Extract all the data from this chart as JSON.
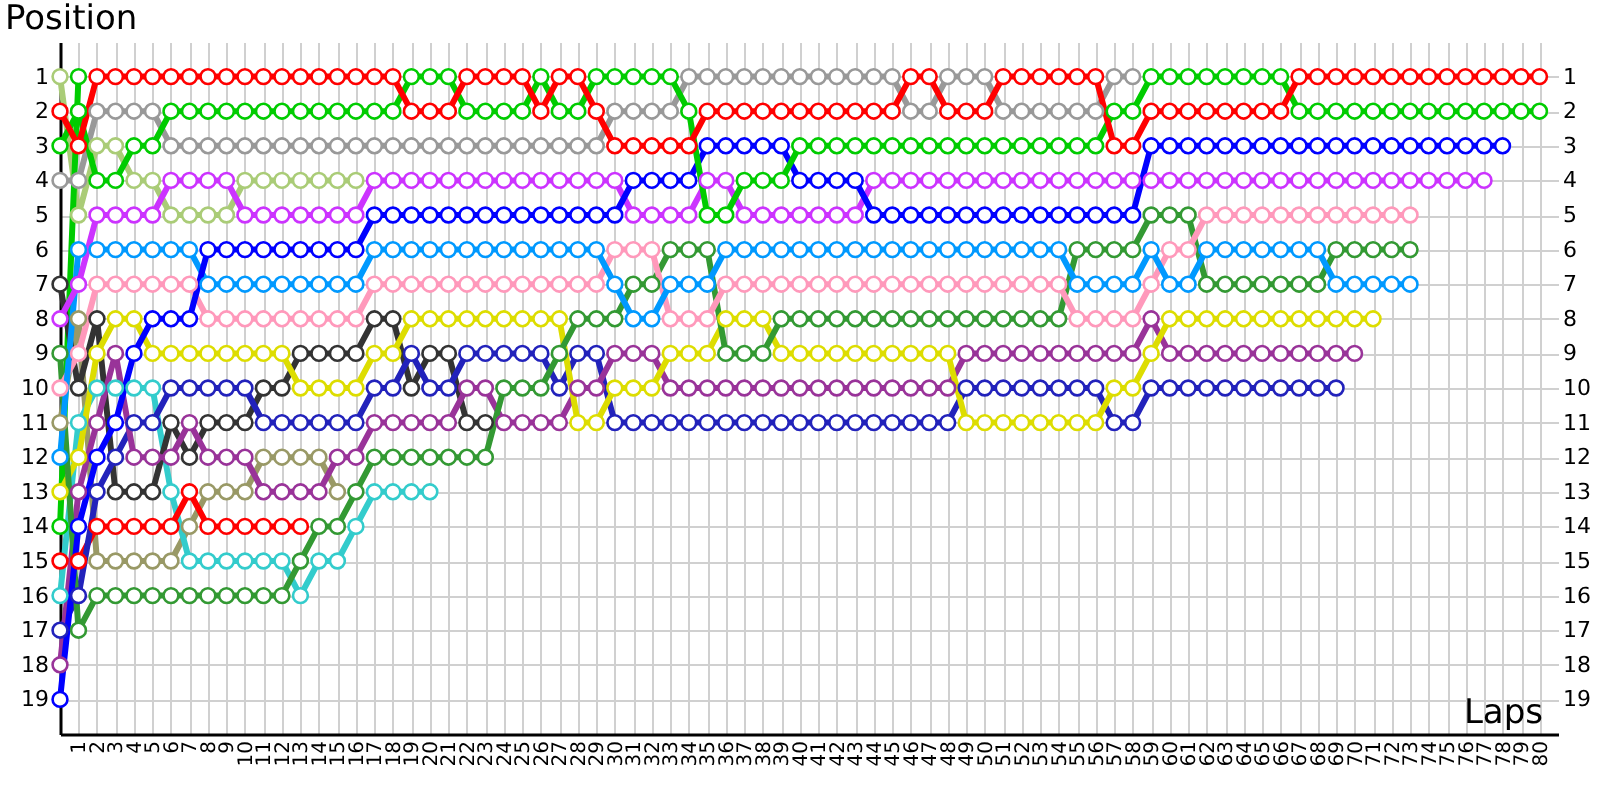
{
  "chart_data": {
    "type": "line",
    "xlabel": "Laps",
    "ylabel": "Position",
    "marker": "circle",
    "line_style": "solid",
    "grid": true,
    "xlim": [
      0,
      81
    ],
    "ylim": [
      20,
      0
    ],
    "y2lim": [
      20,
      0
    ],
    "xticks": [
      1,
      2,
      3,
      4,
      5,
      6,
      7,
      8,
      9,
      10,
      11,
      12,
      13,
      14,
      15,
      16,
      17,
      18,
      19,
      20,
      21,
      22,
      23,
      24,
      25,
      26,
      27,
      28,
      29,
      30,
      31,
      32,
      33,
      34,
      35,
      36,
      37,
      38,
      39,
      40,
      41,
      42,
      43,
      44,
      45,
      46,
      47,
      48,
      49,
      50,
      51,
      52,
      53,
      54,
      55,
      56,
      57,
      58,
      59,
      60,
      61,
      62,
      63,
      64,
      65,
      66,
      67,
      68,
      69,
      70,
      71,
      72,
      73,
      74,
      75,
      76,
      77,
      78,
      79,
      80
    ],
    "yticks": [
      1,
      2,
      3,
      4,
      5,
      6,
      7,
      8,
      9,
      10,
      11,
      12,
      13,
      14,
      15,
      16,
      17,
      18,
      19
    ],
    "y2ticks": [
      1,
      2,
      3,
      4,
      5,
      6,
      7,
      8,
      9,
      10,
      11,
      12,
      13,
      14,
      15,
      16,
      17,
      18,
      19
    ],
    "x": [
      0,
      1,
      2,
      3,
      4,
      5,
      6,
      7,
      8,
      9,
      10,
      11,
      12,
      13,
      14,
      15,
      16,
      17,
      18,
      19,
      20,
      21,
      22,
      23,
      24,
      25,
      26,
      27,
      28,
      29,
      30,
      31,
      32,
      33,
      34,
      35,
      36,
      37,
      38,
      39,
      40,
      41,
      42,
      43,
      44,
      45,
      46,
      47,
      48,
      49,
      50,
      51,
      52,
      53,
      54,
      55,
      56,
      57,
      58,
      59,
      60,
      61,
      62,
      63,
      64,
      65,
      66,
      67,
      68,
      69,
      70,
      71,
      72,
      73,
      74,
      75,
      76,
      77,
      78,
      79,
      80
    ],
    "series": [
      {
        "color": "#aacc77",
        "values": [
          1,
          5,
          3,
          3,
          4,
          4,
          5,
          5,
          5,
          5,
          4,
          4,
          4,
          4,
          4,
          4,
          4,
          null,
          null,
          null,
          null,
          null,
          null,
          null,
          null,
          null,
          null,
          null,
          null,
          null,
          null,
          null,
          null,
          null,
          null,
          null,
          null,
          null,
          null,
          null,
          null,
          null,
          null,
          null,
          null,
          null,
          null,
          null,
          null,
          null,
          null,
          null,
          null,
          null,
          null,
          null,
          null,
          null,
          null,
          null,
          null,
          null,
          null,
          null,
          null,
          null,
          null,
          null,
          null,
          null,
          null,
          null,
          null,
          null,
          null,
          null,
          null,
          null,
          null,
          null,
          null
        ]
      },
      {
        "color": "#999966",
        "values": [
          11,
          8,
          15,
          15,
          15,
          15,
          15,
          14,
          13,
          13,
          13,
          12,
          12,
          12,
          12,
          13,
          null,
          null,
          null,
          null,
          null,
          null,
          null,
          null,
          null,
          null,
          null,
          null,
          null,
          null,
          null,
          null,
          null,
          null,
          null,
          null,
          null,
          null,
          null,
          null,
          null,
          null,
          null,
          null,
          null,
          null,
          null,
          null,
          null,
          null,
          null,
          null,
          null,
          null,
          null,
          null,
          null,
          null,
          null,
          null,
          null,
          null,
          null,
          null,
          null,
          null,
          null,
          null,
          null,
          null,
          null,
          null,
          null,
          null,
          null,
          null,
          null,
          null,
          null,
          null,
          null
        ]
      },
      {
        "color": "#33cccc",
        "values": [
          16,
          11,
          10,
          10,
          10,
          10,
          13,
          15,
          15,
          15,
          15,
          15,
          15,
          16,
          15,
          15,
          14,
          13,
          13,
          13,
          13,
          null,
          null,
          null,
          null,
          null,
          null,
          null,
          null,
          null,
          null,
          null,
          null,
          null,
          null,
          null,
          null,
          null,
          null,
          null,
          null,
          null,
          null,
          null,
          null,
          null,
          null,
          null,
          null,
          null,
          null,
          null,
          null,
          null,
          null,
          null,
          null,
          null,
          null,
          null,
          null,
          null,
          null,
          null,
          null,
          null,
          null,
          null,
          null,
          null,
          null,
          null,
          null,
          null,
          null,
          null,
          null,
          null,
          null,
          null,
          null
        ]
      },
      {
        "color": "#ff0000",
        "values": [
          15,
          15,
          14,
          14,
          14,
          14,
          14,
          13,
          14,
          14,
          14,
          14,
          14,
          14,
          null,
          null,
          null,
          null,
          null,
          null,
          null,
          null,
          null,
          null,
          null,
          null,
          null,
          null,
          null,
          null,
          null,
          null,
          null,
          null,
          null,
          null,
          null,
          null,
          null,
          null,
          null,
          null,
          null,
          null,
          null,
          null,
          null,
          null,
          null,
          null,
          null,
          null,
          null,
          null,
          null,
          null,
          null,
          null,
          null,
          null,
          null,
          null,
          null,
          null,
          null,
          null,
          null,
          null,
          null,
          null,
          null,
          null,
          null,
          null,
          null,
          null,
          null,
          null,
          null,
          null,
          null
        ]
      },
      {
        "color": "#00cc00",
        "values": [
          14,
          1,
          null,
          null,
          null,
          null,
          null,
          null,
          null,
          null,
          null,
          null,
          null,
          null,
          null,
          null,
          null,
          null,
          null,
          null,
          null,
          null,
          null,
          null,
          null,
          null,
          null,
          null,
          null,
          null,
          null,
          null,
          null,
          null,
          null,
          null,
          null,
          null,
          null,
          null,
          null,
          null,
          null,
          null,
          null,
          null,
          null,
          null,
          null,
          null,
          null,
          null,
          null,
          null,
          null,
          null,
          null,
          null,
          null,
          null,
          null,
          null,
          null,
          null,
          null,
          null,
          null,
          null,
          null,
          null,
          null,
          null,
          null,
          null,
          null,
          null,
          null,
          null,
          null,
          null,
          null
        ]
      },
      {
        "color": "#333333",
        "values": [
          7,
          10,
          8,
          13,
          13,
          13,
          11,
          12,
          11,
          11,
          11,
          10,
          10,
          9,
          9,
          9,
          9,
          8,
          8,
          10,
          9,
          9,
          11,
          11,
          null,
          null,
          null,
          null,
          null,
          null,
          null,
          null,
          null,
          null,
          null,
          null,
          null,
          null,
          null,
          null,
          null,
          null,
          null,
          null,
          null,
          null,
          null,
          null,
          null,
          null,
          null,
          null,
          null,
          null,
          null,
          null,
          null,
          null,
          null,
          null,
          null,
          null,
          null,
          null,
          null,
          null,
          null,
          null,
          null,
          null,
          null,
          null,
          null,
          null,
          null,
          null,
          null,
          null,
          null,
          null,
          null
        ]
      },
      {
        "color": "#999999",
        "values": [
          4,
          4,
          2,
          2,
          2,
          2,
          3,
          3,
          3,
          3,
          3,
          3,
          3,
          3,
          3,
          3,
          3,
          3,
          3,
          3,
          3,
          3,
          3,
          3,
          3,
          3,
          3,
          3,
          3,
          3,
          2,
          2,
          2,
          2,
          1,
          1,
          1,
          1,
          1,
          1,
          1,
          1,
          1,
          1,
          1,
          1,
          2,
          2,
          1,
          1,
          1,
          2,
          2,
          2,
          2,
          2,
          2,
          1,
          1,
          null,
          null,
          null,
          null,
          null,
          null,
          null,
          null,
          null,
          null,
          null,
          null,
          null,
          null,
          null,
          null,
          null,
          null,
          null,
          null,
          null,
          null
        ]
      },
      {
        "color": "#2222bb",
        "values": [
          17,
          16,
          13,
          12,
          11,
          11,
          10,
          10,
          10,
          10,
          10,
          11,
          11,
          11,
          11,
          11,
          11,
          10,
          10,
          9,
          10,
          10,
          9,
          9,
          9,
          9,
          9,
          10,
          9,
          9,
          11,
          11,
          11,
          11,
          11,
          11,
          11,
          11,
          11,
          11,
          11,
          11,
          11,
          11,
          11,
          11,
          11,
          11,
          11,
          10,
          10,
          10,
          10,
          10,
          10,
          10,
          10,
          11,
          11,
          10,
          10,
          10,
          10,
          10,
          10,
          10,
          10,
          10,
          10,
          10,
          null,
          null,
          null,
          null,
          null,
          null,
          null,
          null,
          null,
          null,
          null
        ]
      },
      {
        "color": "#993399",
        "values": [
          18,
          13,
          11,
          9,
          12,
          12,
          12,
          11,
          12,
          12,
          12,
          13,
          13,
          13,
          13,
          12,
          12,
          11,
          11,
          11,
          11,
          11,
          10,
          10,
          11,
          11,
          11,
          11,
          10,
          10,
          9,
          9,
          9,
          10,
          10,
          10,
          10,
          10,
          10,
          10,
          10,
          10,
          10,
          10,
          10,
          10,
          10,
          10,
          10,
          9,
          9,
          9,
          9,
          9,
          9,
          9,
          9,
          9,
          9,
          8,
          9,
          9,
          9,
          9,
          9,
          9,
          9,
          9,
          9,
          9,
          9,
          null,
          null,
          null,
          null,
          null,
          null,
          null,
          null,
          null,
          null
        ]
      },
      {
        "color": "#dddd00",
        "values": [
          13,
          12,
          9,
          8,
          8,
          9,
          9,
          9,
          9,
          9,
          9,
          9,
          9,
          10,
          10,
          10,
          10,
          9,
          9,
          8,
          8,
          8,
          8,
          8,
          8,
          8,
          8,
          8,
          11,
          11,
          10,
          10,
          10,
          9,
          9,
          9,
          8,
          8,
          8,
          9,
          9,
          9,
          9,
          9,
          9,
          9,
          9,
          9,
          9,
          11,
          11,
          11,
          11,
          11,
          11,
          11,
          11,
          10,
          10,
          9,
          8,
          8,
          8,
          8,
          8,
          8,
          8,
          8,
          8,
          8,
          8,
          8,
          null,
          null,
          null,
          null,
          null,
          null,
          null,
          null,
          null
        ]
      },
      {
        "color": "#339933",
        "values": [
          9,
          17,
          16,
          16,
          16,
          16,
          16,
          16,
          16,
          16,
          16,
          16,
          16,
          15,
          14,
          14,
          13,
          12,
          12,
          12,
          12,
          12,
          12,
          12,
          10,
          10,
          10,
          9,
          8,
          8,
          8,
          7,
          7,
          6,
          6,
          6,
          9,
          9,
          9,
          8,
          8,
          8,
          8,
          8,
          8,
          8,
          8,
          8,
          8,
          8,
          8,
          8,
          8,
          8,
          8,
          6,
          6,
          6,
          6,
          5,
          5,
          5,
          7,
          7,
          7,
          7,
          7,
          7,
          7,
          6,
          6,
          6,
          6,
          6,
          null,
          null,
          null,
          null,
          null,
          null,
          null
        ]
      },
      {
        "color": "#ff99bb",
        "values": [
          10,
          9,
          7,
          7,
          7,
          7,
          7,
          7,
          8,
          8,
          8,
          8,
          8,
          8,
          8,
          8,
          8,
          7,
          7,
          7,
          7,
          7,
          7,
          7,
          7,
          7,
          7,
          7,
          7,
          7,
          6,
          6,
          6,
          8,
          8,
          8,
          7,
          7,
          7,
          7,
          7,
          7,
          7,
          7,
          7,
          7,
          7,
          7,
          7,
          7,
          7,
          7,
          7,
          7,
          7,
          8,
          8,
          8,
          8,
          7,
          6,
          6,
          5,
          5,
          5,
          5,
          5,
          5,
          5,
          5,
          5,
          5,
          5,
          5,
          null,
          null,
          null,
          null,
          null,
          null,
          null
        ]
      },
      {
        "color": "#0099ff",
        "values": [
          12,
          6,
          6,
          6,
          6,
          6,
          6,
          6,
          7,
          7,
          7,
          7,
          7,
          7,
          7,
          7,
          7,
          6,
          6,
          6,
          6,
          6,
          6,
          6,
          6,
          6,
          6,
          6,
          6,
          6,
          7,
          8,
          8,
          7,
          7,
          7,
          6,
          6,
          6,
          6,
          6,
          6,
          6,
          6,
          6,
          6,
          6,
          6,
          6,
          6,
          6,
          6,
          6,
          6,
          6,
          7,
          7,
          7,
          7,
          6,
          7,
          7,
          6,
          6,
          6,
          6,
          6,
          6,
          6,
          7,
          7,
          7,
          7,
          7,
          null,
          null,
          null,
          null,
          null,
          null,
          null
        ]
      },
      {
        "color": "#cc33ff",
        "values": [
          8,
          7,
          5,
          5,
          5,
          5,
          4,
          4,
          4,
          4,
          5,
          5,
          5,
          5,
          5,
          5,
          5,
          4,
          4,
          4,
          4,
          4,
          4,
          4,
          4,
          4,
          4,
          4,
          4,
          4,
          4,
          5,
          5,
          5,
          5,
          4,
          4,
          5,
          5,
          5,
          5,
          5,
          5,
          5,
          4,
          4,
          4,
          4,
          4,
          4,
          4,
          4,
          4,
          4,
          4,
          4,
          4,
          4,
          4,
          4,
          4,
          4,
          4,
          4,
          4,
          4,
          4,
          4,
          4,
          4,
          4,
          4,
          4,
          4,
          4,
          4,
          4,
          4,
          null,
          null,
          null
        ]
      },
      {
        "color": "#0000ff",
        "values": [
          19,
          14,
          12,
          11,
          9,
          8,
          8,
          8,
          6,
          6,
          6,
          6,
          6,
          6,
          6,
          6,
          6,
          5,
          5,
          5,
          5,
          5,
          5,
          5,
          5,
          5,
          5,
          5,
          5,
          5,
          5,
          4,
          4,
          4,
          4,
          3,
          3,
          3,
          3,
          3,
          4,
          4,
          4,
          4,
          5,
          5,
          5,
          5,
          5,
          5,
          5,
          5,
          5,
          5,
          5,
          5,
          5,
          5,
          5,
          3,
          3,
          3,
          3,
          3,
          3,
          3,
          3,
          3,
          3,
          3,
          3,
          3,
          3,
          3,
          3,
          3,
          3,
          3,
          3,
          null,
          null
        ]
      },
      {
        "color": "#00cc00",
        "values": [
          3,
          2,
          4,
          4,
          3,
          3,
          2,
          2,
          2,
          2,
          2,
          2,
          2,
          2,
          2,
          2,
          2,
          2,
          2,
          1,
          1,
          1,
          2,
          2,
          2,
          2,
          1,
          2,
          2,
          1,
          1,
          1,
          1,
          1,
          2,
          5,
          5,
          4,
          4,
          4,
          3,
          3,
          3,
          3,
          3,
          3,
          3,
          3,
          3,
          3,
          3,
          3,
          3,
          3,
          3,
          3,
          3,
          2,
          2,
          1,
          1,
          1,
          1,
          1,
          1,
          1,
          1,
          2,
          2,
          2,
          2,
          2,
          2,
          2,
          2,
          2,
          2,
          2,
          2,
          2,
          2
        ]
      },
      {
        "color": "#ff0000",
        "values": [
          2,
          3,
          1,
          1,
          1,
          1,
          1,
          1,
          1,
          1,
          1,
          1,
          1,
          1,
          1,
          1,
          1,
          1,
          1,
          2,
          2,
          2,
          1,
          1,
          1,
          1,
          2,
          1,
          1,
          2,
          3,
          3,
          3,
          3,
          3,
          2,
          2,
          2,
          2,
          2,
          2,
          2,
          2,
          2,
          2,
          2,
          1,
          1,
          2,
          2,
          2,
          1,
          1,
          1,
          1,
          1,
          1,
          3,
          3,
          2,
          2,
          2,
          2,
          2,
          2,
          2,
          2,
          1,
          1,
          1,
          1,
          1,
          1,
          1,
          1,
          1,
          1,
          1,
          1,
          1,
          1
        ]
      }
    ]
  }
}
